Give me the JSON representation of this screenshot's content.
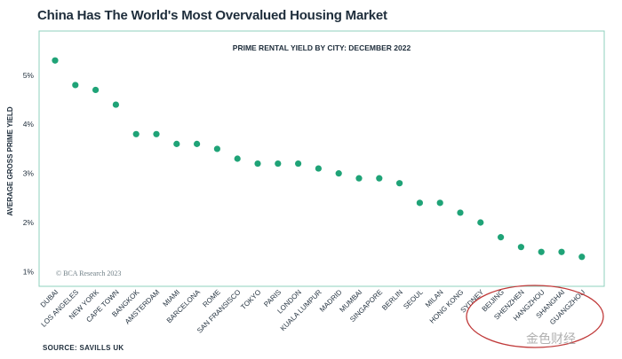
{
  "title": "China Has The World's Most Overvalued Housing Market",
  "source": "SOURCE: SAVILLS UK",
  "watermark": "金色财经",
  "copyright": "© BCA Research 2023",
  "colors": {
    "point": "#1fa377",
    "border": "#8fd0bd",
    "highlight": "#c03a3a",
    "text": "#1e2d3b"
  },
  "chart_data": {
    "type": "scatter",
    "title": "PRIME RENTAL YIELD BY CITY: DECEMBER 2022",
    "ylabel": "AVERAGE GROSS PRIME YIELD",
    "xlabel": "",
    "ylim": [
      0.7,
      5.9
    ],
    "yticks": [
      1,
      2,
      3,
      4,
      5
    ],
    "ytick_labels": [
      "1%",
      "2%",
      "3%",
      "4%",
      "5%"
    ],
    "grid": false,
    "categories": [
      "DUBAI",
      "LOS ANGELES",
      "NEW YORK",
      "CAPE TOWN",
      "BANGKOK",
      "AMSTERDAM",
      "MIAMI",
      "BARCELONA",
      "ROME",
      "SAN FRANSISCO",
      "TOKYO",
      "PARIS",
      "LONDON",
      "KUALA LUMPUR",
      "MADRID",
      "MUMBAI",
      "SINGAPORE",
      "BERLIN",
      "SEOUL",
      "MILAN",
      "HONG KONG",
      "SYDNEY",
      "BEIJING",
      "SHENZHEN",
      "HANGZHOU",
      "SHANGHAI",
      "GUANGZHOU"
    ],
    "values": [
      5.3,
      4.8,
      4.7,
      4.4,
      3.8,
      3.8,
      3.6,
      3.6,
      3.5,
      3.3,
      3.2,
      3.2,
      3.2,
      3.1,
      3.0,
      2.9,
      2.9,
      2.8,
      2.4,
      2.4,
      2.2,
      2.0,
      1.7,
      1.5,
      1.4,
      1.4,
      1.3
    ],
    "highlighted": [
      "BEIJING",
      "SHENZHEN",
      "HANGZHOU",
      "SHANGHAI",
      "GUANGZHOU"
    ]
  }
}
